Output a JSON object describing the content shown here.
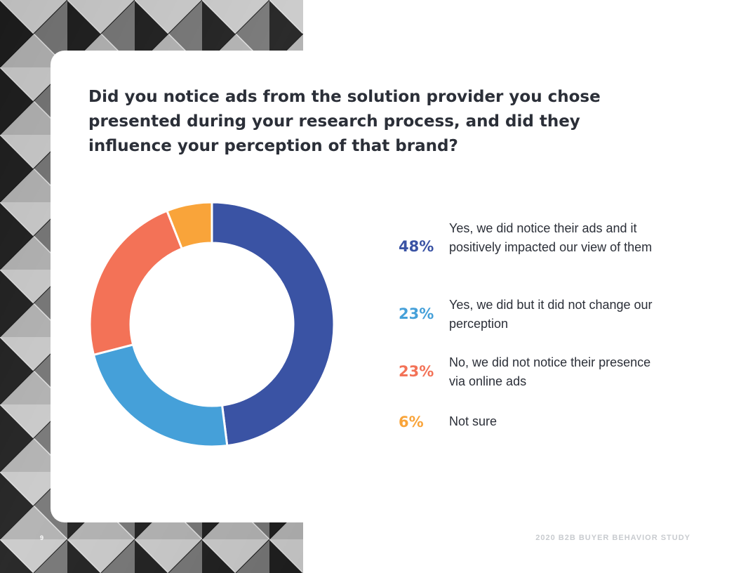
{
  "page": {
    "page_number": "9",
    "footer": "2020 B2B BUYER BEHAVIOR STUDY"
  },
  "question": "Did you notice ads from the solution provider you chose presented during your research process, and did they influence your perception of that brand?",
  "chart_data": {
    "type": "pie",
    "style": "donut",
    "title": "",
    "categories": [
      "Yes, we did notice their ads and it positively impacted our view of them",
      "Yes, we did but it did not change our perception",
      "No, we did not notice their presence via online ads",
      "Not sure"
    ],
    "values": [
      48,
      23,
      23,
      6
    ],
    "value_labels": [
      "48%",
      "23%",
      "23%",
      "6%"
    ],
    "colors": [
      "#3a53a4",
      "#45a0d9",
      "#f37257",
      "#f9a43a"
    ],
    "legend_placement": "right"
  }
}
